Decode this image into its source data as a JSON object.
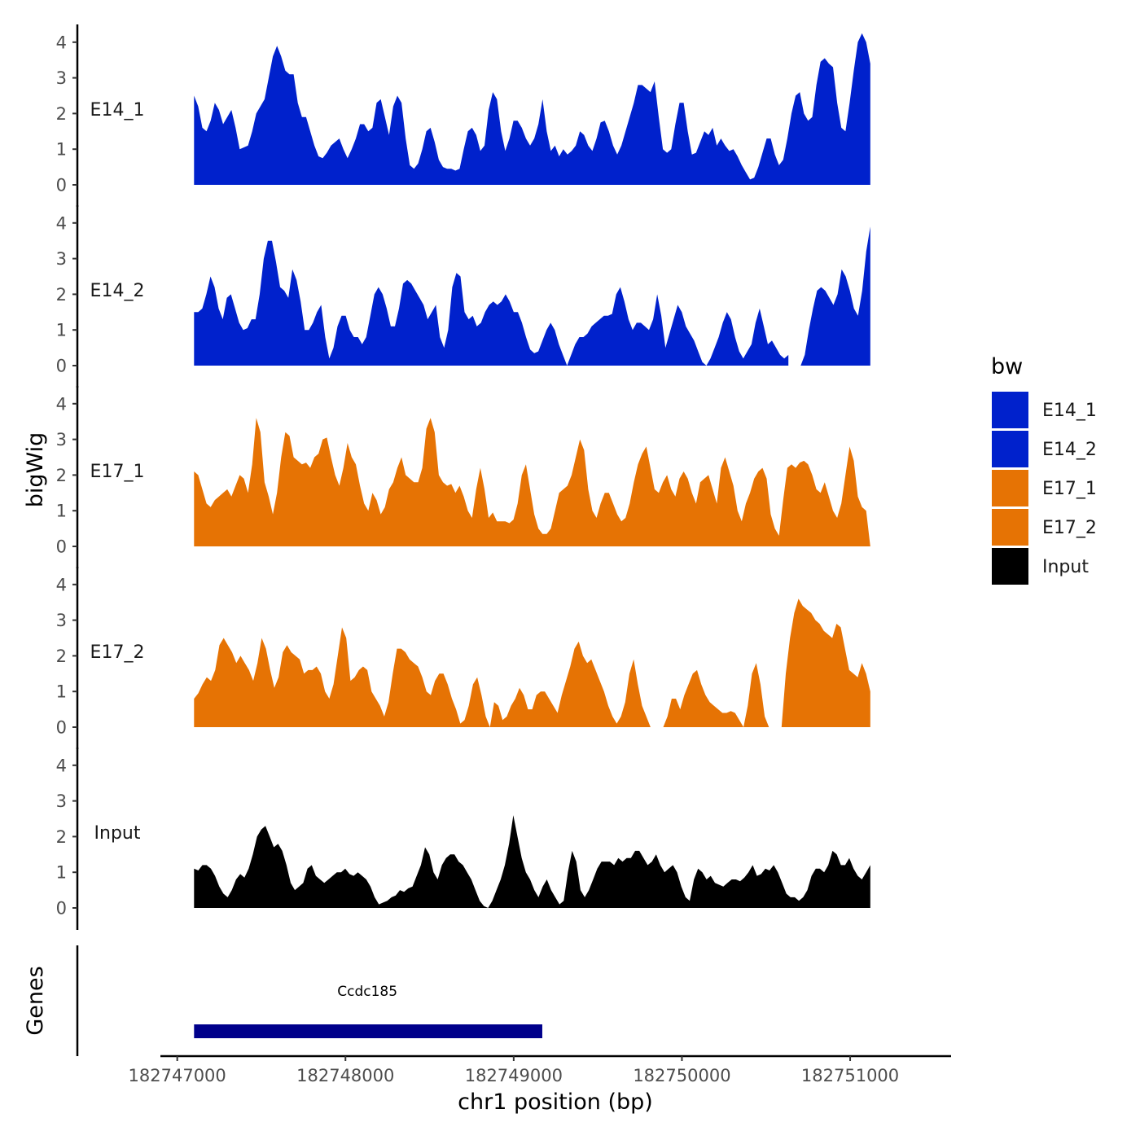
{
  "chart_data": {
    "type": "area",
    "ylabel": "bigWig",
    "xlabel": "chr1 position (bp)",
    "genes_label": "Genes",
    "xlim": [
      182746900,
      182751600
    ],
    "x_ticks": [
      182747000,
      182748000,
      182749000,
      182750000,
      182751000
    ],
    "x_tick_labels": [
      "182747000",
      "182748000",
      "182749000",
      "182750000",
      "182751000"
    ],
    "y_range": [
      0,
      4.4
    ],
    "y_ticks": [
      0,
      1,
      2,
      3,
      4
    ],
    "y_tick_labels": [
      "0",
      "1",
      "2",
      "3",
      "4"
    ],
    "x_start": 182747100,
    "x_end": 182751120,
    "legend": {
      "title": "bw",
      "entries": [
        {
          "label": "E14_1",
          "color": "#0021CC"
        },
        {
          "label": "E14_2",
          "color": "#0021CC"
        },
        {
          "label": "E17_1",
          "color": "#E67304"
        },
        {
          "label": "E17_2",
          "color": "#E67304"
        },
        {
          "label": "Input",
          "color": "#000000"
        }
      ]
    },
    "series": [
      {
        "name": "E14_1",
        "color": "#0021CC",
        "values": [
          2.5,
          2.2,
          1.6,
          1.5,
          1.8,
          2.3,
          2.1,
          1.7,
          1.9,
          2.1,
          1.6,
          1.0,
          1.05,
          1.1,
          1.5,
          2.0,
          2.2,
          2.4,
          3.0,
          3.6,
          3.9,
          3.6,
          3.2,
          3.1,
          3.1,
          2.3,
          1.9,
          1.9,
          1.5,
          1.1,
          0.8,
          0.75,
          0.9,
          1.1,
          1.2,
          1.3,
          1.0,
          0.75,
          1.0,
          1.3,
          1.7,
          1.7,
          1.5,
          1.6,
          2.3,
          2.4,
          1.9,
          1.4,
          2.2,
          2.5,
          2.3,
          1.3,
          0.55,
          0.45,
          0.6,
          1.0,
          1.5,
          1.6,
          1.2,
          0.7,
          0.5,
          0.45,
          0.45,
          0.4,
          0.45,
          1.0,
          1.5,
          1.6,
          1.4,
          0.95,
          1.1,
          2.1,
          2.6,
          2.4,
          1.5,
          0.95,
          1.3,
          1.8,
          1.8,
          1.6,
          1.3,
          1.1,
          1.3,
          1.7,
          2.4,
          1.5,
          0.95,
          1.1,
          0.8,
          1.0,
          0.85,
          0.95,
          1.1,
          1.5,
          1.4,
          1.1,
          0.95,
          1.3,
          1.75,
          1.8,
          1.5,
          1.1,
          0.85,
          1.1,
          1.5,
          1.9,
          2.3,
          2.8,
          2.8,
          2.7,
          2.6,
          2.9,
          1.9,
          1.0,
          0.9,
          1.0,
          1.7,
          2.3,
          2.3,
          1.5,
          0.85,
          0.9,
          1.2,
          1.5,
          1.4,
          1.6,
          1.1,
          1.3,
          1.1,
          0.95,
          1.0,
          0.8,
          0.55,
          0.35,
          0.15,
          0.2,
          0.5,
          0.9,
          1.3,
          1.3,
          0.85,
          0.55,
          0.7,
          1.3,
          2.0,
          2.5,
          2.6,
          2.0,
          1.8,
          1.9,
          2.8,
          3.45,
          3.55,
          3.4,
          3.3,
          2.3,
          1.6,
          1.5,
          2.3,
          3.2,
          4.0,
          4.25,
          4.0,
          3.4
        ]
      },
      {
        "name": "E14_2",
        "color": "#0021CC",
        "values": [
          1.5,
          1.5,
          1.6,
          2.0,
          2.5,
          2.2,
          1.6,
          1.3,
          1.9,
          2.0,
          1.6,
          1.2,
          1.0,
          1.05,
          1.3,
          1.3,
          2.0,
          3.0,
          3.5,
          3.5,
          2.9,
          2.2,
          2.1,
          1.9,
          2.7,
          2.4,
          1.8,
          1.0,
          1.0,
          1.2,
          1.5,
          1.7,
          0.8,
          0.2,
          0.5,
          1.1,
          1.4,
          1.4,
          1.0,
          0.8,
          0.8,
          0.6,
          0.8,
          1.4,
          2.0,
          2.2,
          2.0,
          1.6,
          1.1,
          1.1,
          1.6,
          2.3,
          2.4,
          2.3,
          2.1,
          1.9,
          1.7,
          1.3,
          1.5,
          1.7,
          0.8,
          0.5,
          1.0,
          2.2,
          2.6,
          2.5,
          1.5,
          1.3,
          1.4,
          1.1,
          1.2,
          1.5,
          1.7,
          1.8,
          1.7,
          1.8,
          2.0,
          1.8,
          1.5,
          1.5,
          1.2,
          0.8,
          0.45,
          0.35,
          0.4,
          0.7,
          1.0,
          1.2,
          1.0,
          0.6,
          0.3,
          0.0,
          0.3,
          0.6,
          0.8,
          0.8,
          0.9,
          1.1,
          1.2,
          1.3,
          1.4,
          1.4,
          1.45,
          2.0,
          2.2,
          1.8,
          1.3,
          1.0,
          1.2,
          1.2,
          1.1,
          1.0,
          1.3,
          2.0,
          1.4,
          0.5,
          0.9,
          1.3,
          1.7,
          1.5,
          1.1,
          0.9,
          0.7,
          0.4,
          0.1,
          0.0,
          0.2,
          0.5,
          0.8,
          1.2,
          1.5,
          1.3,
          0.8,
          0.4,
          0.2,
          0.4,
          0.6,
          1.2,
          1.6,
          1.1,
          0.6,
          0.7,
          0.5,
          0.3,
          0.2,
          0.3,
          null,
          null,
          0.0,
          0.3,
          1.0,
          1.6,
          2.1,
          2.2,
          2.1,
          1.9,
          1.7,
          2.0,
          2.7,
          2.5,
          2.1,
          1.6,
          1.4,
          2.1,
          3.2,
          3.9
        ]
      },
      {
        "name": "E17_1",
        "color": "#E67304",
        "values": [
          2.1,
          2.0,
          1.6,
          1.2,
          1.1,
          1.3,
          1.4,
          1.5,
          1.6,
          1.4,
          1.7,
          2.0,
          1.9,
          1.5,
          2.3,
          3.6,
          3.2,
          1.8,
          1.4,
          0.9,
          1.5,
          2.5,
          3.2,
          3.1,
          2.5,
          2.4,
          2.3,
          2.35,
          2.2,
          2.5,
          2.6,
          3.0,
          3.05,
          2.5,
          2.0,
          1.7,
          2.2,
          2.9,
          2.5,
          2.3,
          1.7,
          1.2,
          1.0,
          1.5,
          1.3,
          0.9,
          1.1,
          1.6,
          1.8,
          2.2,
          2.5,
          2.0,
          1.9,
          1.8,
          1.8,
          2.2,
          3.3,
          3.6,
          3.2,
          2.0,
          1.8,
          1.7,
          1.75,
          1.5,
          1.7,
          1.4,
          1.0,
          0.8,
          1.6,
          2.2,
          1.6,
          0.8,
          0.95,
          0.7,
          0.7,
          0.7,
          0.65,
          0.75,
          1.2,
          2.0,
          2.3,
          1.6,
          0.9,
          0.5,
          0.35,
          0.35,
          0.5,
          1.0,
          1.5,
          1.6,
          1.7,
          2.0,
          2.5,
          3.0,
          2.7,
          1.6,
          1.0,
          0.8,
          1.2,
          1.5,
          1.5,
          1.2,
          0.9,
          0.7,
          0.8,
          1.2,
          1.8,
          2.3,
          2.6,
          2.8,
          2.2,
          1.6,
          1.5,
          1.8,
          2.0,
          1.6,
          1.4,
          1.9,
          2.1,
          1.9,
          1.5,
          1.2,
          1.8,
          1.9,
          2.0,
          1.6,
          1.2,
          2.2,
          2.5,
          2.1,
          1.7,
          1.0,
          0.7,
          1.2,
          1.5,
          1.9,
          2.1,
          2.2,
          1.9,
          0.9,
          0.5,
          0.3,
          1.3,
          2.2,
          2.3,
          2.2,
          2.35,
          2.4,
          2.3,
          2.0,
          1.6,
          1.5,
          1.8,
          1.4,
          1.0,
          0.8,
          1.2,
          2.0,
          2.8,
          2.4,
          1.4,
          1.1,
          1.0,
          0.0
        ]
      },
      {
        "name": "E17_2",
        "color": "#E67304",
        "values": [
          0.8,
          0.95,
          1.2,
          1.4,
          1.3,
          1.6,
          2.3,
          2.5,
          2.3,
          2.1,
          1.8,
          2.0,
          1.8,
          1.6,
          1.3,
          1.8,
          2.5,
          2.2,
          1.6,
          1.1,
          1.4,
          2.1,
          2.3,
          2.1,
          2.0,
          1.9,
          1.5,
          1.6,
          1.6,
          1.7,
          1.5,
          1.0,
          0.8,
          1.2,
          2.0,
          2.8,
          2.5,
          1.3,
          1.4,
          1.6,
          1.7,
          1.6,
          1.0,
          0.8,
          0.6,
          0.3,
          0.7,
          1.5,
          2.2,
          2.2,
          2.1,
          1.9,
          1.8,
          1.7,
          1.4,
          1.0,
          0.9,
          1.3,
          1.5,
          1.5,
          1.2,
          0.8,
          0.5,
          0.1,
          0.2,
          0.6,
          1.2,
          1.4,
          0.9,
          0.3,
          0.0,
          0.7,
          0.6,
          0.2,
          0.3,
          0.6,
          0.8,
          1.1,
          0.9,
          0.5,
          0.5,
          0.9,
          1.0,
          1.0,
          0.8,
          0.6,
          0.4,
          0.9,
          1.3,
          1.7,
          2.2,
          2.4,
          2.0,
          1.8,
          1.9,
          1.6,
          1.3,
          1.0,
          0.6,
          0.3,
          0.1,
          0.3,
          0.7,
          1.5,
          1.9,
          1.2,
          0.6,
          0.3,
          0.0,
          null,
          null,
          0.0,
          0.3,
          0.8,
          0.8,
          0.5,
          0.9,
          1.2,
          1.5,
          1.6,
          1.2,
          0.9,
          0.7,
          0.6,
          0.5,
          0.4,
          0.4,
          0.45,
          0.4,
          0.2,
          0.0,
          0.6,
          1.5,
          1.8,
          1.2,
          0.3,
          0.0,
          null,
          null,
          0.0,
          1.5,
          2.5,
          3.2,
          3.6,
          3.4,
          3.3,
          3.2,
          3.0,
          2.9,
          2.7,
          2.6,
          2.5,
          2.9,
          2.8,
          2.2,
          1.6,
          1.5,
          1.4,
          1.8,
          1.5,
          1.0
        ]
      },
      {
        "name": "Input",
        "color": "#000000",
        "values": [
          1.1,
          1.05,
          1.2,
          1.2,
          1.1,
          0.9,
          0.6,
          0.4,
          0.3,
          0.5,
          0.8,
          0.95,
          0.85,
          1.1,
          1.5,
          2.0,
          2.2,
          2.3,
          2.0,
          1.7,
          1.8,
          1.6,
          1.2,
          0.7,
          0.5,
          0.6,
          0.7,
          1.1,
          1.2,
          0.9,
          0.8,
          0.7,
          0.8,
          0.9,
          1.0,
          1.0,
          1.1,
          0.95,
          0.9,
          1.0,
          0.9,
          0.8,
          0.6,
          0.3,
          0.1,
          0.15,
          0.2,
          0.3,
          0.35,
          0.5,
          0.45,
          0.55,
          0.6,
          0.9,
          1.2,
          1.7,
          1.5,
          1.0,
          0.8,
          1.2,
          1.4,
          1.5,
          1.5,
          1.3,
          1.2,
          1.0,
          0.8,
          0.5,
          0.2,
          0.05,
          0.0,
          0.2,
          0.5,
          0.8,
          1.2,
          1.8,
          2.6,
          2.0,
          1.4,
          1.0,
          0.8,
          0.5,
          0.3,
          0.6,
          0.8,
          0.5,
          0.3,
          0.1,
          0.2,
          1.0,
          1.6,
          1.3,
          0.5,
          0.3,
          0.5,
          0.8,
          1.1,
          1.3,
          1.3,
          1.3,
          1.2,
          1.4,
          1.3,
          1.4,
          1.4,
          1.6,
          1.6,
          1.4,
          1.2,
          1.3,
          1.5,
          1.2,
          1.0,
          1.1,
          1.2,
          1.0,
          0.6,
          0.3,
          0.2,
          0.8,
          1.1,
          1.0,
          0.8,
          0.9,
          0.7,
          0.65,
          0.6,
          0.7,
          0.8,
          0.8,
          0.75,
          0.85,
          1.0,
          1.2,
          0.9,
          0.95,
          1.1,
          1.05,
          1.2,
          1.0,
          0.7,
          0.4,
          0.3,
          0.3,
          0.2,
          0.3,
          0.5,
          0.9,
          1.1,
          1.1,
          1.0,
          1.2,
          1.6,
          1.5,
          1.2,
          1.2,
          1.4,
          1.1,
          0.9,
          0.8,
          1.0,
          1.2
        ]
      }
    ],
    "genes": [
      {
        "name": "Ccdc185",
        "start": 182747100,
        "end": 182749170,
        "color": "#00008B"
      }
    ]
  }
}
